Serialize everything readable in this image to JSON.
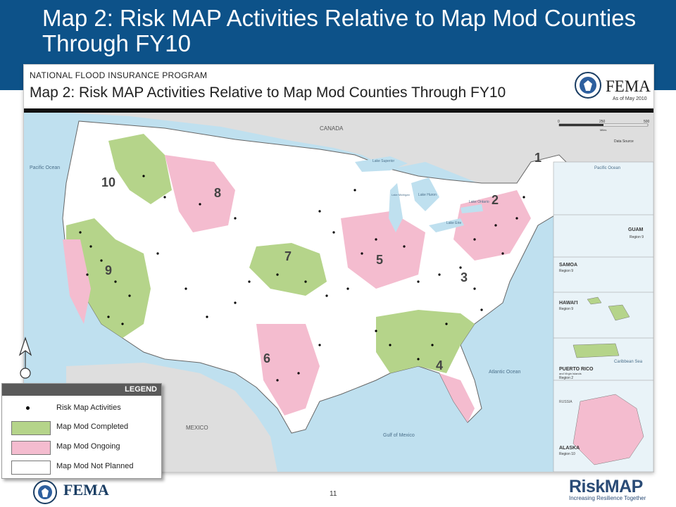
{
  "slide": {
    "title": "Map 2: Risk MAP Activities Relative to Map Mod Counties Through FY10",
    "page_number": "11"
  },
  "map": {
    "program": "NATIONAL FLOOD INSURANCE PROGRAM",
    "title": "Map 2:  Risk MAP Activities Relative to Map Mod Counties Through FY10",
    "agency_logo": "FEMA",
    "as_of": "As of May 2010",
    "colors": {
      "ocean": "#bfe0ef",
      "foreign_land": "#dedede",
      "completed": "#b5d48a",
      "ongoing": "#f4bccf",
      "not_planned": "#ffffff",
      "header_blue": "#0d5289"
    },
    "geo_labels": {
      "canada": "CANADA",
      "mexico": "MEXICO",
      "pacific_ocean": "Pacific Ocean",
      "atlantic_ocean": "Atlantic Ocean",
      "gulf_of_mexico": "Gulf of Mexico",
      "lake_superior": "Lake Superior",
      "lake_huron": "Lake Huron",
      "lake_michigan": "Lake Michigan",
      "lake_ontario": "Lake Ontario",
      "lake_erie": "Lake Erie",
      "russia": "RUSSIA",
      "caribbean_sea": "Caribbean Sea"
    },
    "regions": [
      "1",
      "2",
      "3",
      "4",
      "5",
      "6",
      "7",
      "8",
      "9",
      "10"
    ],
    "scale": {
      "ticks": [
        "0",
        "250",
        "500"
      ],
      "unit": "Miles"
    },
    "data_source": "Data Source",
    "insets": [
      {
        "name": "GUAM",
        "region": "Region 9"
      },
      {
        "name": "SAMOA",
        "region": "Region 9"
      },
      {
        "name": "HAWAI'I",
        "region": "Region 9"
      },
      {
        "name": "PUERTO RICO",
        "sub": "and Virgin Islands",
        "region": "Region 2"
      },
      {
        "name": "ALASKA",
        "region": "Region 10"
      }
    ],
    "inset_pacific_label": "Pacific Ocean"
  },
  "legend": {
    "title": "LEGEND",
    "items": [
      {
        "label": "Risk Map Activities"
      },
      {
        "label": "Map Mod Completed"
      },
      {
        "label": "Map Mod Ongoing"
      },
      {
        "label": "Map Mod Not Planned"
      }
    ]
  },
  "footer": {
    "fema": "FEMA",
    "riskmap": "RiskMAP",
    "tagline": "Increasing Resilience Together"
  }
}
